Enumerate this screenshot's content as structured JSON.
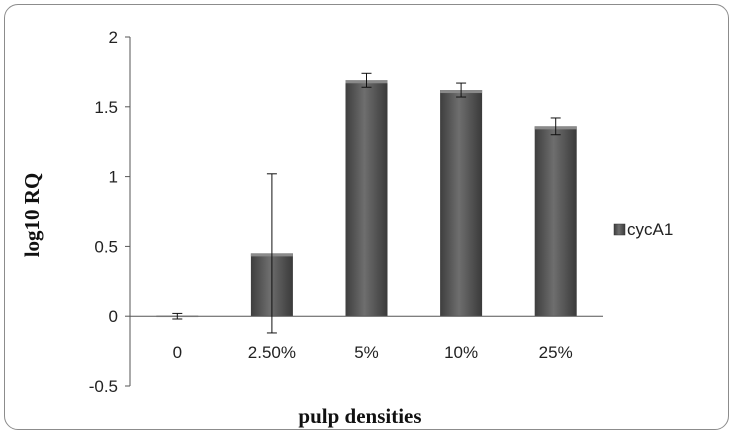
{
  "chart_data": {
    "type": "bar",
    "title": "",
    "xlabel": "pulp densities",
    "ylabel": "log10 RQ",
    "categories": [
      "0",
      "2.50%",
      "5%",
      "10%",
      "25%"
    ],
    "series": [
      {
        "name": "cycA1",
        "values": [
          0,
          0.45,
          1.69,
          1.62,
          1.36
        ],
        "error": [
          0.02,
          0.57,
          0.05,
          0.05,
          0.06
        ],
        "color": "#5a5a5a"
      }
    ],
    "ylim": [
      -0.5,
      2
    ],
    "yticks": [
      -0.5,
      0,
      0.5,
      1,
      1.5,
      2
    ],
    "ytick_labels": [
      "-0.5",
      "0",
      "0.5",
      "1",
      "1.5",
      "2"
    ],
    "grid": false,
    "legend_position": "right"
  }
}
